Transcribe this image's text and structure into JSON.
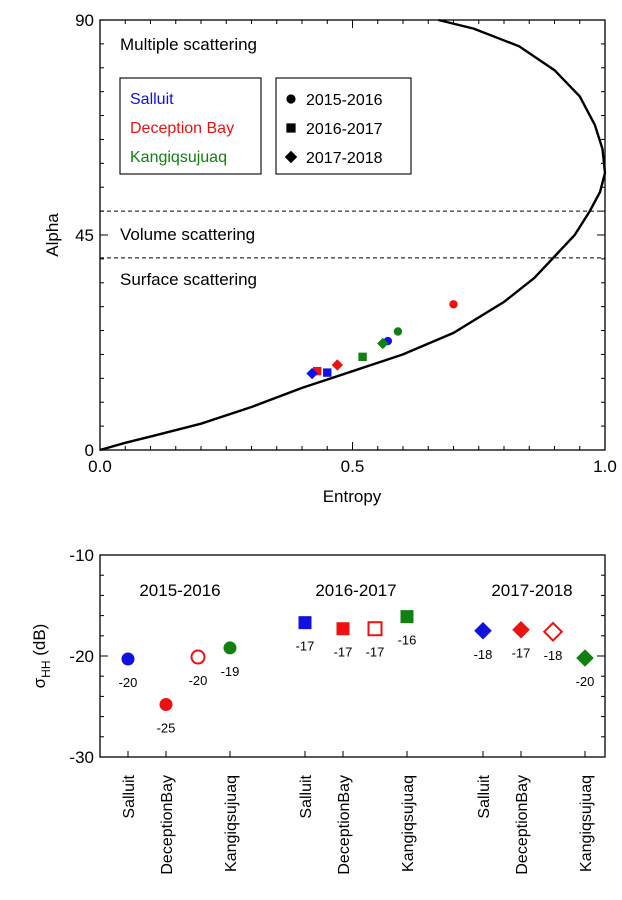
{
  "chart_data": [
    {
      "type": "scatter",
      "title": "",
      "xlabel": "Entropy",
      "ylabel": "Alpha",
      "xlim": [
        0,
        1
      ],
      "ylim": [
        0,
        90
      ],
      "x_ticks": [
        "0.0",
        "0.5",
        "1.0"
      ],
      "y_ticks": [
        "0",
        "45",
        "90"
      ],
      "grid": false,
      "boundary_curve": {
        "x": [
          0.0,
          0.05,
          0.1,
          0.2,
          0.3,
          0.4,
          0.5,
          0.6,
          0.7,
          0.8,
          0.86,
          0.9,
          0.94,
          0.97,
          0.99,
          1.0,
          0.995,
          0.98,
          0.95,
          0.9,
          0.83,
          0.74,
          0.67
        ],
        "y": [
          0,
          1.5,
          2.8,
          5.5,
          9,
          13,
          16.5,
          20,
          24.5,
          31,
          36,
          40.5,
          45,
          50,
          54,
          58,
          63,
          68,
          74,
          79.5,
          84.5,
          88.2,
          90
        ]
      },
      "dividers": [
        {
          "y": 50,
          "style": "dashed"
        },
        {
          "y": 40.2,
          "style": "dashed"
        }
      ],
      "region_labels": [
        "Multiple scattering",
        "Volume scattering",
        "Surface scattering"
      ],
      "legend_sites": [
        {
          "name": "Salluit",
          "color": "#1010e0"
        },
        {
          "name": "Deception Bay",
          "color": "#ee1111"
        },
        {
          "name": "Kangiqsujuaq",
          "color": "#108010"
        }
      ],
      "legend_years": [
        {
          "name": "2015-2016",
          "marker": "circle"
        },
        {
          "name": "2016-2017",
          "marker": "square"
        },
        {
          "name": "2017-2018",
          "marker": "diamond"
        }
      ],
      "points": [
        {
          "site": "Salluit",
          "year": "2015-2016",
          "x": 0.57,
          "y": 22.8
        },
        {
          "site": "Deception Bay",
          "year": "2015-2016",
          "x": 0.7,
          "y": 30.5
        },
        {
          "site": "Kangiqsujuaq",
          "year": "2015-2016",
          "x": 0.59,
          "y": 24.8
        },
        {
          "site": "Salluit",
          "year": "2016-2017",
          "x": 0.45,
          "y": 16.2
        },
        {
          "site": "Deception Bay",
          "year": "2016-2017",
          "x": 0.43,
          "y": 16.5
        },
        {
          "site": "Kangiqsujuaq",
          "year": "2016-2017",
          "x": 0.52,
          "y": 19.5
        },
        {
          "site": "Salluit",
          "year": "2017-2018",
          "x": 0.42,
          "y": 16.0
        },
        {
          "site": "Deception Bay",
          "year": "2017-2018",
          "x": 0.47,
          "y": 17.8
        },
        {
          "site": "Kangiqsujuaq",
          "year": "2017-2018",
          "x": 0.56,
          "y": 22.3
        }
      ]
    },
    {
      "type": "scatter",
      "title": "",
      "xlabel": "",
      "ylabel_main": "σ",
      "ylabel_sub": "HH",
      "ylabel_unit": " (dB)",
      "ylim": [
        -30,
        -10
      ],
      "y_ticks": [
        "-10",
        "-20",
        "-30"
      ],
      "grid": false,
      "groups": [
        "2015-2016",
        "2016-2017",
        "2017-2018"
      ],
      "categories": [
        "Salluit",
        "DeceptionBay",
        "Kangiqsujuaq",
        "Salluit",
        "DeceptionBay",
        "Kangiqsujuaq",
        "Salluit",
        "DeceptionBay",
        "Kangiqsujuaq"
      ],
      "points": [
        {
          "slot": 0,
          "y": -20.3,
          "label": "-20",
          "marker": "circle",
          "color": "#1010e0",
          "filled": true
        },
        {
          "slot": 1,
          "y": -24.8,
          "label": "-25",
          "marker": "circle",
          "color": "#ee1111",
          "filled": true
        },
        {
          "slot": 1.5,
          "y": -20.1,
          "label": "-20",
          "marker": "circle",
          "color": "#ee1111",
          "filled": false
        },
        {
          "slot": 2,
          "y": -19.2,
          "label": "-19",
          "marker": "circle",
          "color": "#108010",
          "filled": true
        },
        {
          "slot": 3,
          "y": -16.7,
          "label": "-17",
          "marker": "square",
          "color": "#1010e0",
          "filled": true
        },
        {
          "slot": 4,
          "y": -17.3,
          "label": "-17",
          "marker": "square",
          "color": "#ee1111",
          "filled": true
        },
        {
          "slot": 4.5,
          "y": -17.3,
          "label": "-17",
          "marker": "square",
          "color": "#ee1111",
          "filled": false
        },
        {
          "slot": 5,
          "y": -16.1,
          "label": "-16",
          "marker": "square",
          "color": "#108010",
          "filled": true
        },
        {
          "slot": 6,
          "y": -17.5,
          "label": "-18",
          "marker": "diamond",
          "color": "#1010e0",
          "filled": true
        },
        {
          "slot": 7,
          "y": -17.4,
          "label": "-17",
          "marker": "diamond",
          "color": "#ee1111",
          "filled": true
        },
        {
          "slot": 7.5,
          "y": -17.6,
          "label": "-18",
          "marker": "diamond",
          "color": "#ee1111",
          "filled": false
        },
        {
          "slot": 8,
          "y": -20.2,
          "label": "-20",
          "marker": "diamond",
          "color": "#108010",
          "filled": true
        }
      ]
    }
  ]
}
